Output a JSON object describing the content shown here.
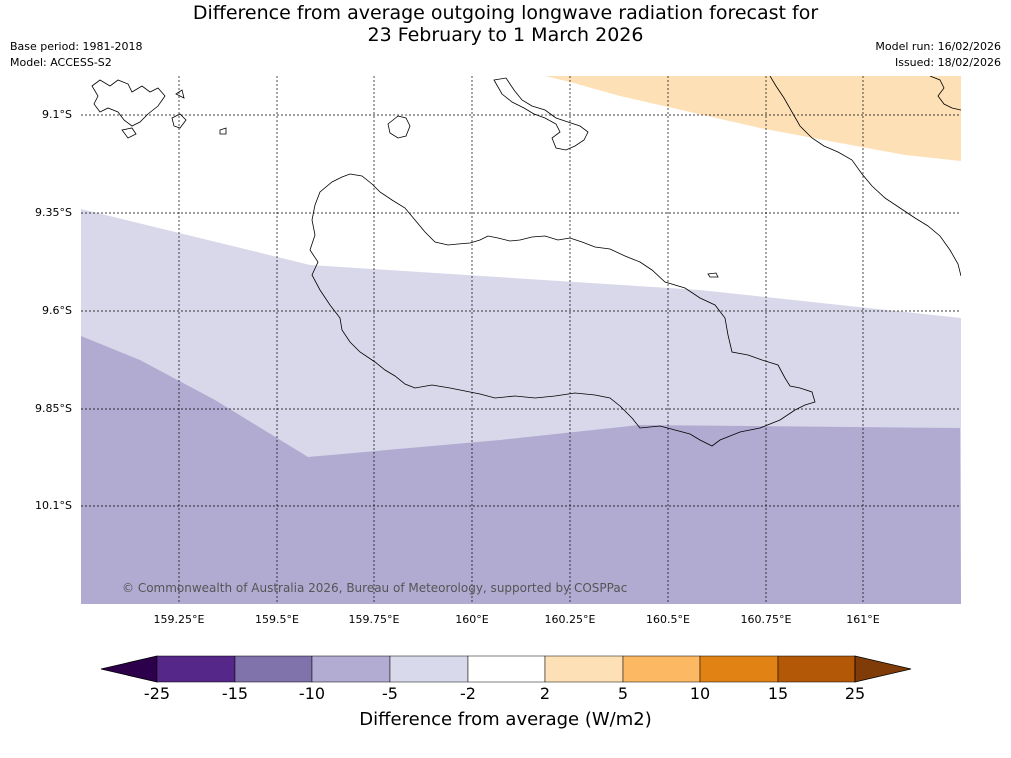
{
  "header": {
    "title_line1": "Difference from average outgoing longwave radiation forecast for",
    "title_line2": "23 February to 1 March 2026",
    "base_period": "Base period: 1981-2018",
    "model": "Model: ACCESS-S2",
    "model_run": "Model run: 16/02/2026",
    "issued": "Issued: 18/02/2026"
  },
  "map": {
    "lat_labels": [
      "9.1°S",
      "9.35°S",
      "9.6°S",
      "9.85°S",
      "10.1°S"
    ],
    "lon_labels": [
      "159.25°E",
      "159.5°E",
      "159.75°E",
      "160°E",
      "160.25°E",
      "160.5°E",
      "160.75°E",
      "161°E"
    ],
    "copyright": "© Commonwealth of Australia 2026, Bureau of Meteorology, supported by COSPPac",
    "colors": {
      "band_minus10_minus5": "#b1abd2",
      "band_minus5_minus2": "#d8d8ea",
      "band_2_5": "#fee0b6",
      "coastline": "#000000"
    }
  },
  "colorbar": {
    "title": "Difference from average (W/m2)",
    "ticks": [
      "-25",
      "-15",
      "-10",
      "-5",
      "-2",
      "2",
      "5",
      "10",
      "15",
      "25"
    ],
    "colors": [
      "#2d004b",
      "#542788",
      "#8073ac",
      "#b2abd2",
      "#d8daeb",
      "#ffffff",
      "#fee0b6",
      "#fdb863",
      "#e08214",
      "#b35806",
      "#7f3b08"
    ]
  }
}
